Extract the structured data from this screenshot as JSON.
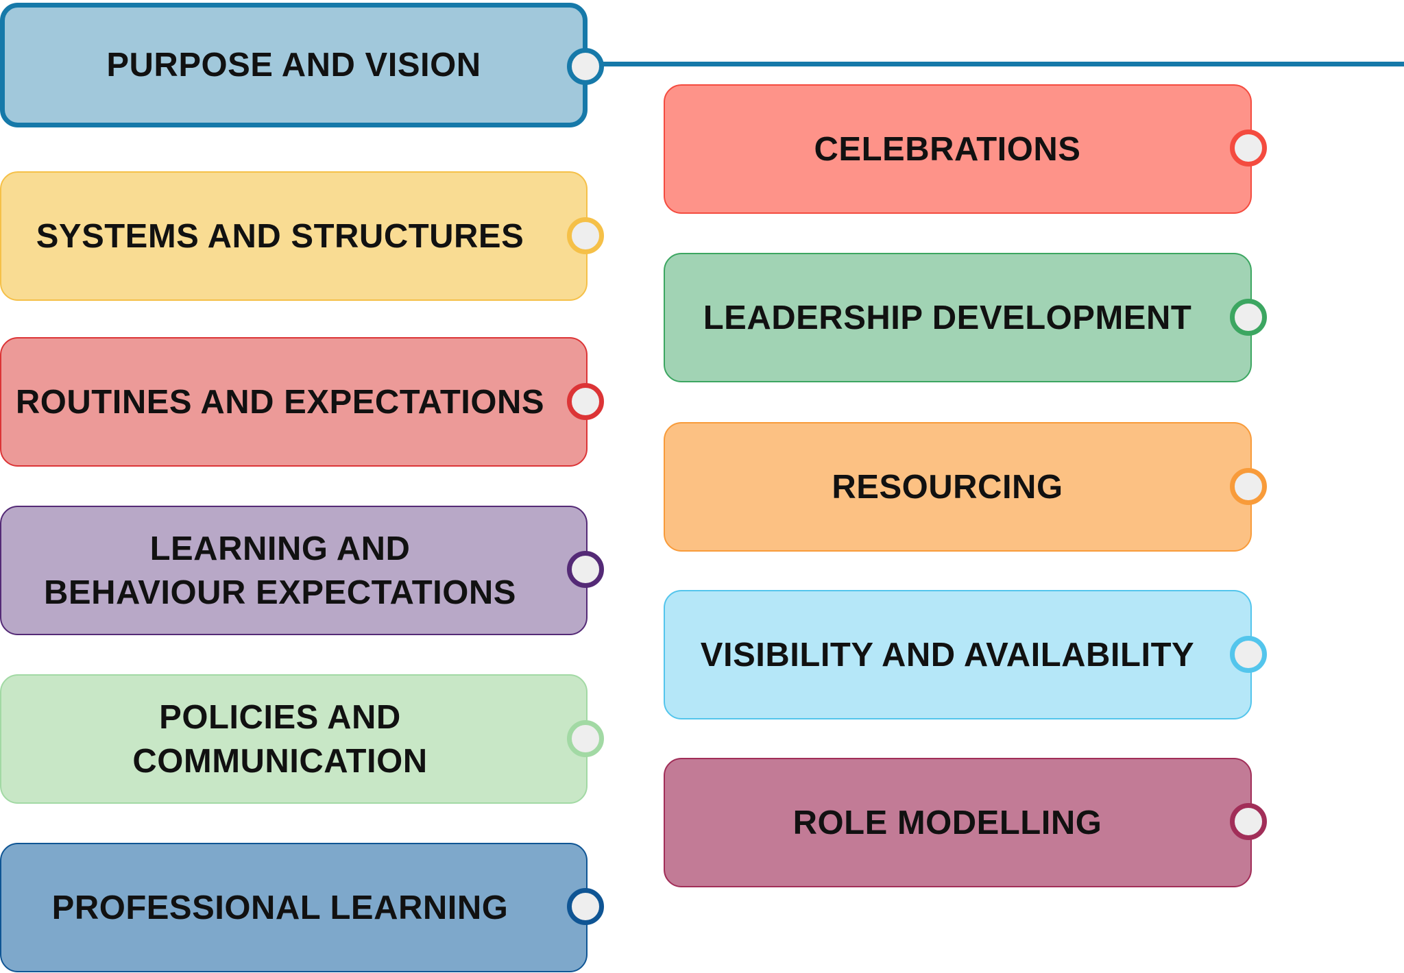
{
  "cards": {
    "purpose": {
      "label": "PURPOSE AND VISION",
      "fill": "#a1c8db",
      "border": "#1679a9"
    },
    "systems": {
      "label": "SYSTEMS AND STRUCTURES",
      "fill": "#f9dc93",
      "border": "#f5c048"
    },
    "routines": {
      "label": "ROUTINES AND EXPECTATIONS",
      "fill": "#ec9a98",
      "border": "#dc3436"
    },
    "learning_behaviour": {
      "label": "LEARNING AND\nBEHAVIOUR EXPECTATIONS",
      "fill": "#b8a8c7",
      "border": "#542a76"
    },
    "policies": {
      "label": "POLICIES AND\nCOMMUNICATION",
      "fill": "#c8e7c6",
      "border": "#a2d9a4"
    },
    "professional": {
      "label": "PROFESSIONAL LEARNING",
      "fill": "#7ea8cb",
      "border": "#0f5594"
    },
    "celebrations": {
      "label": "CELEBRATIONS",
      "fill": "#fe9389",
      "border": "#f44b3f"
    },
    "leadership": {
      "label": "LEADERSHIP DEVELOPMENT",
      "fill": "#a1d3b4",
      "border": "#3ca661"
    },
    "resourcing": {
      "label": "RESOURCING",
      "fill": "#fcc183",
      "border": "#f89b3a"
    },
    "visibility": {
      "label": "VISIBILITY AND AVAILABILITY",
      "fill": "#b5e7f8",
      "border": "#53c5ec"
    },
    "role_modelling": {
      "label": "ROLE MODELLING",
      "fill": "#c27b96",
      "border": "#a12e58"
    }
  },
  "connector_color": "#1679a9",
  "node_fill": "#eeeeee"
}
